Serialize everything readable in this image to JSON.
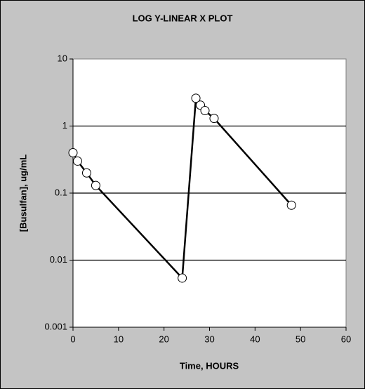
{
  "chart_data": {
    "type": "line",
    "title": "LOG Y-LINEAR X PLOT",
    "x_label": "Time, HOURS",
    "y_label": "[Busulfan], ug/mL",
    "x": [
      0,
      1,
      3,
      5,
      24,
      27,
      28,
      29,
      31,
      48
    ],
    "values": [
      0.4,
      0.3,
      0.2,
      0.13,
      0.0054,
      2.6,
      2.05,
      1.7,
      1.3,
      0.066
    ],
    "color": "#000000",
    "marker_fill": "#ffffff",
    "xlim": [
      0,
      60
    ],
    "xticks": [
      0,
      10,
      20,
      30,
      40,
      50,
      60
    ],
    "ylim": [
      0.001,
      10
    ],
    "yticks": [
      0.001,
      0.01,
      0.1,
      1,
      10
    ],
    "log_y": true,
    "grid": true
  }
}
